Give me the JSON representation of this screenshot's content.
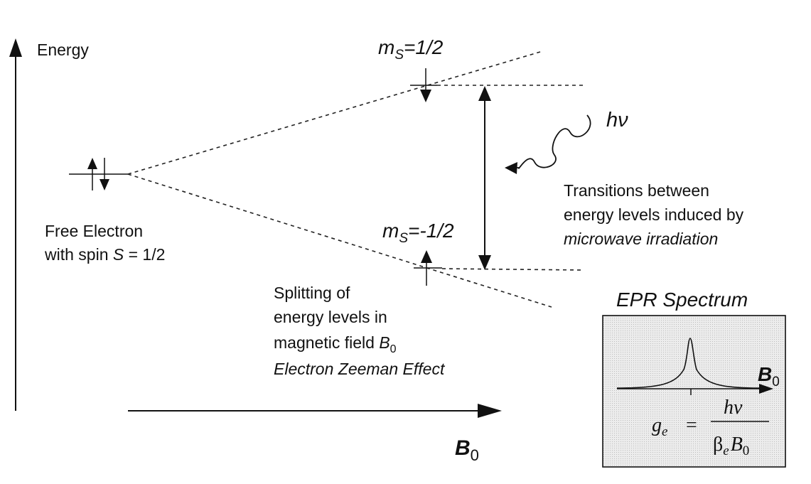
{
  "axes": {
    "energy_label": "Energy",
    "field_symbol": "B",
    "field_subscript": "0"
  },
  "levels": {
    "upper_label_m": "m",
    "upper_label_sub": "S",
    "upper_label_val": "=1/2",
    "lower_label_m": "m",
    "lower_label_sub": "S",
    "lower_label_val": "=-1/2"
  },
  "free_electron": {
    "line1": "Free Electron",
    "line2_prefix": "with spin ",
    "line2_symbol": "S",
    "line2_suffix": " = 1/2"
  },
  "photon": {
    "symbol": "hν"
  },
  "transitions": {
    "line1": "Transitions between",
    "line2": "energy levels induced by",
    "line3": "microwave irradiation"
  },
  "splitting": {
    "line1": "Splitting of",
    "line2": "energy levels in",
    "line3_prefix": "magnetic field ",
    "line3_symbol": "B",
    "line3_sub": "0",
    "line4": "Electron Zeeman Effect"
  },
  "spectrum": {
    "title": "EPR Spectrum",
    "field_symbol": "B",
    "field_sub": "0",
    "formula_lhs": "g",
    "formula_lhs_sub": "e",
    "formula_eq": "=",
    "formula_num": "hν",
    "formula_den_beta": "β",
    "formula_den_beta_sub": "e",
    "formula_den_B": "B",
    "formula_den_B_sub": "0",
    "panel_color": "#e2e2e2"
  }
}
